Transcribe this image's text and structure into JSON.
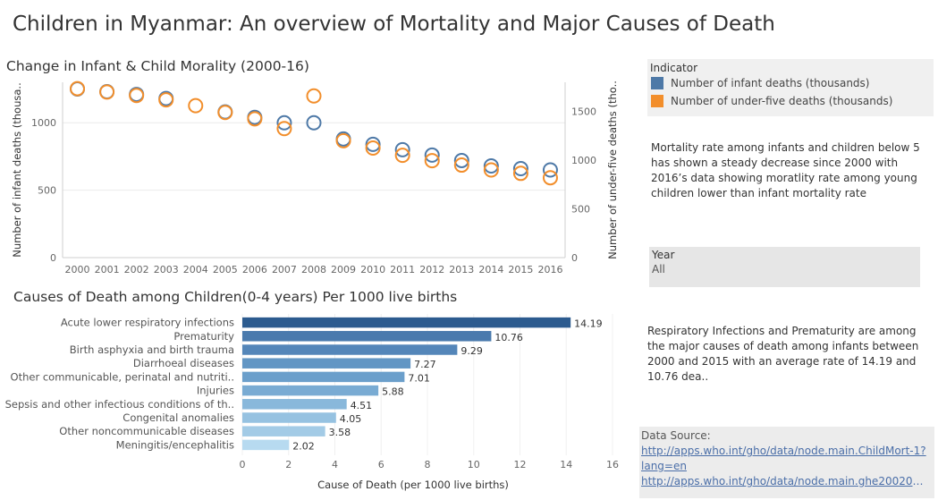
{
  "page": {
    "title": "Children in Myanmar: An overview of Mortality and Major Causes of Death"
  },
  "legend": {
    "title": "Indicator",
    "items": [
      {
        "label": "Number of infant deaths (thousands)",
        "color": "#4e79a7"
      },
      {
        "label": "Number of under-five deaths (thousands)",
        "color": "#f28e2b"
      }
    ]
  },
  "note1": "Mortality rate among infants and children below 5 has shown a steady decrease since 2000 with 2016’s data showing moratlity rate among young children lower than infant mortality rate",
  "filter": {
    "label": "Year",
    "value": "All"
  },
  "note2": "Respiratory Infections and Prematurity are among the major causes of death among infants between 2000 and 2015 with an average rate of 14.19 and 10.76 dea..",
  "source": {
    "label": "Data Source:",
    "links": [
      "http://apps.who.int/gho/data/node.main.ChildMort-1?lang=en",
      "http://apps.who.int/gho/data/node.main.ghe2002015-.."
    ]
  },
  "chart_data": [
    {
      "type": "scatter",
      "title": "Change in Infant & Child Morality (2000-16)",
      "x": [
        "2000",
        "2001",
        "2002",
        "2003",
        "2004",
        "2005",
        "2006",
        "2007",
        "2008",
        "2009",
        "2010",
        "2011",
        "2012",
        "2013",
        "2014",
        "2015",
        "2016"
      ],
      "ylabel_left": "Number of infant deaths (thousa..",
      "ylabel_right": "Number of under-five deaths (tho..",
      "yticks_left": [
        "0",
        "500",
        "1000"
      ],
      "yticks_right": [
        "0",
        "500",
        "1000",
        "1500"
      ],
      "ylim_left": [
        0,
        1300
      ],
      "ylim_right": [
        0,
        1800
      ],
      "series": [
        {
          "name": "Number of infant deaths (thousands)",
          "axis": "left",
          "color": "#4e79a7",
          "values": [
            1250,
            1230,
            1210,
            1180,
            null,
            1080,
            1040,
            1000,
            1000,
            880,
            840,
            800,
            760,
            720,
            680,
            660,
            650
          ]
        },
        {
          "name": "Number of under-five deaths (thousands)",
          "axis": "right",
          "color": "#f28e2b",
          "values": [
            1735,
            1700,
            1665,
            1620,
            1560,
            1490,
            1425,
            1325,
            1660,
            1200,
            1125,
            1050,
            995,
            950,
            900,
            865,
            820
          ]
        }
      ],
      "grid": true,
      "legend": "right"
    },
    {
      "type": "bar",
      "orientation": "horizontal",
      "title": "Causes of Death among Children(0-4 years)  Per 1000 live births",
      "xlabel": "Cause of Death (per 1000 live births)",
      "xlim": [
        0,
        16
      ],
      "xticks": [
        "0",
        "2",
        "4",
        "6",
        "8",
        "10",
        "12",
        "14",
        "16"
      ],
      "categories": [
        "Acute lower respiratory infections",
        "Prematurity",
        "Birth asphyxia and birth trauma",
        "Diarrhoeal diseases",
        "Other communicable, perinatal and nutriti..",
        "Injuries",
        "Sepsis and other infectious conditions of th..",
        "Congenital anomalies",
        "Other noncommunicable diseases",
        "Meningitis/encephalitis"
      ],
      "values": [
        14.19,
        10.76,
        9.29,
        7.27,
        7.01,
        5.88,
        4.51,
        4.05,
        3.58,
        2.02
      ],
      "labels": [
        "14.19",
        "10.76",
        "9.29",
        "7.27",
        "7.01",
        "5.88",
        "4.51",
        "4.05",
        "3.58",
        "2.02"
      ],
      "colors": [
        "#2c5b8f",
        "#4a7aad",
        "#5486b9",
        "#6296c4",
        "#6b9fcb",
        "#79abd3",
        "#89b8db",
        "#96c2e1",
        "#a3cbe6",
        "#b7daf0"
      ]
    }
  ]
}
